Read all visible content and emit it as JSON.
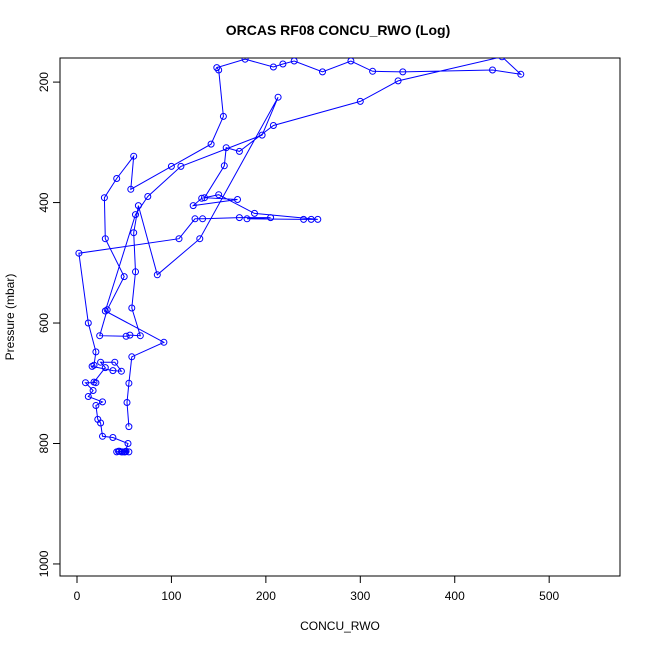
{
  "chart_data": {
    "type": "line",
    "title": "ORCAS RF08 CONCU_RWO (Log)",
    "xlabel": "CONCU_RWO",
    "ylabel": "Pressure (mbar)",
    "xlim": [
      -18,
      575
    ],
    "ylim": [
      1020,
      160
    ],
    "y_reversed": true,
    "x_ticks": [
      0,
      100,
      200,
      300,
      400,
      500
    ],
    "y_ticks": [
      200,
      400,
      600,
      800,
      1000
    ],
    "grid": false,
    "legend": "none",
    "marker": "open-circle",
    "colors": {
      "series": "#0000ff",
      "axes": "#000000"
    },
    "series": [
      {
        "points": [
          [
            50,
            814
          ],
          [
            45,
            813
          ],
          [
            42,
            814
          ],
          [
            48,
            814
          ],
          [
            52,
            813
          ],
          [
            55,
            814
          ],
          [
            47,
            814
          ],
          [
            44,
            813
          ],
          [
            51,
            814
          ],
          [
            54,
            800
          ],
          [
            38,
            790
          ],
          [
            27,
            788
          ],
          [
            25,
            766
          ],
          [
            22,
            760
          ],
          [
            20,
            737
          ],
          [
            27,
            731
          ],
          [
            12,
            722
          ],
          [
            17,
            712
          ],
          [
            9,
            699
          ],
          [
            20,
            699
          ],
          [
            18,
            698
          ],
          [
            30,
            674
          ],
          [
            25,
            665
          ],
          [
            40,
            665
          ],
          [
            47,
            680
          ],
          [
            38,
            679
          ],
          [
            16,
            672
          ],
          [
            18,
            670
          ],
          [
            20,
            648
          ],
          [
            12,
            600
          ],
          [
            2,
            484
          ],
          [
            108,
            460
          ],
          [
            125,
            427
          ],
          [
            133,
            427
          ],
          [
            172,
            425
          ],
          [
            205,
            425
          ],
          [
            180,
            427
          ],
          [
            240,
            428
          ],
          [
            248,
            428
          ],
          [
            255,
            428
          ],
          [
            188,
            418
          ],
          [
            150,
            387
          ],
          [
            132,
            393
          ],
          [
            123,
            405
          ],
          [
            170,
            395
          ],
          [
            135,
            392
          ],
          [
            156,
            339
          ],
          [
            158,
            309
          ],
          [
            172,
            315
          ],
          [
            208,
            272
          ],
          [
            300,
            232
          ],
          [
            340,
            198
          ],
          [
            450,
            158
          ],
          [
            470,
            187
          ],
          [
            440,
            180
          ],
          [
            345,
            183
          ],
          [
            313,
            182
          ],
          [
            290,
            165
          ],
          [
            260,
            183
          ],
          [
            230,
            165
          ],
          [
            218,
            170
          ],
          [
            208,
            175
          ],
          [
            178,
            162
          ],
          [
            148,
            176
          ],
          [
            150,
            180
          ],
          [
            155,
            257
          ],
          [
            142,
            303
          ],
          [
            100,
            340
          ],
          [
            57,
            378
          ],
          [
            60,
            323
          ],
          [
            42,
            360
          ],
          [
            29,
            392
          ],
          [
            30,
            460
          ],
          [
            50,
            523
          ],
          [
            32,
            578
          ],
          [
            24,
            621
          ],
          [
            52,
            622
          ],
          [
            56,
            620
          ],
          [
            67,
            621
          ],
          [
            58,
            575
          ],
          [
            62,
            515
          ],
          [
            60,
            450
          ],
          [
            65,
            405
          ],
          [
            85,
            520
          ],
          [
            130,
            460
          ],
          [
            213,
            225
          ],
          [
            196,
            288
          ],
          [
            110,
            340
          ],
          [
            75,
            390
          ],
          [
            62,
            420
          ],
          [
            30,
            580
          ],
          [
            92,
            632
          ],
          [
            58,
            656
          ],
          [
            55,
            700
          ],
          [
            53,
            732
          ],
          [
            55,
            772
          ]
        ]
      }
    ]
  }
}
